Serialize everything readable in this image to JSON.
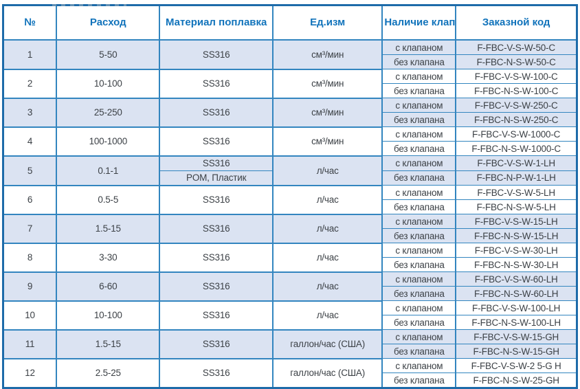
{
  "theme": {
    "header_text_color": "#1173bb",
    "grid_color": "#3285bf",
    "outer_border_color": "#1d6ba9",
    "shaded_row_color": "#dbe3f2",
    "body_text_color": "#3c4146"
  },
  "table": {
    "headers": {
      "num": "№",
      "flow": "Расход",
      "material": "Материал поплавка",
      "unit": "Ед.изм",
      "valve": "Наличие клапана",
      "code": "Заказной код"
    },
    "rows": [
      {
        "num": "1",
        "flow": "5-50",
        "materials": [
          "SS316"
        ],
        "unit": "см³/мин",
        "options": [
          {
            "valve": "с клапаном",
            "code": "F-FBC-V-S-W-50-C"
          },
          {
            "valve": "без клапана",
            "code": "F-FBC-N-S-W-50-C"
          }
        ]
      },
      {
        "num": "2",
        "flow": "10-100",
        "materials": [
          "SS316"
        ],
        "unit": "см³/мин",
        "options": [
          {
            "valve": "с клапаном",
            "code": "F-FBC-V-S-W-100-C"
          },
          {
            "valve": "без клапана",
            "code": "F-FBC-N-S-W-100-C"
          }
        ]
      },
      {
        "num": "3",
        "flow": "25-250",
        "materials": [
          "SS316"
        ],
        "unit": "см³/мин",
        "options": [
          {
            "valve": "с клапаном",
            "code": "F-FBC-V-S-W-250-C"
          },
          {
            "valve": "без клапана",
            "code": "F-FBC-N-S-W-250-C"
          }
        ]
      },
      {
        "num": "4",
        "flow": "100-1000",
        "materials": [
          "SS316"
        ],
        "unit": "см³/мин",
        "options": [
          {
            "valve": "с клапаном",
            "code": "F-FBC-V-S-W-1000-C"
          },
          {
            "valve": "без клапана",
            "code": "F-FBC-N-S-W-1000-C"
          }
        ]
      },
      {
        "num": "5",
        "flow": "0.1-1",
        "materials": [
          "SS316",
          "POM, Пластик"
        ],
        "unit": "л/час",
        "options": [
          {
            "valve": "с клапаном",
            "code": "F-FBC-V-S-W-1-LH"
          },
          {
            "valve": "без клапана",
            "code": "F-FBC-N-P-W-1-LH"
          }
        ]
      },
      {
        "num": "6",
        "flow": "0.5-5",
        "materials": [
          "SS316"
        ],
        "unit": "л/час",
        "options": [
          {
            "valve": "с клапаном",
            "code": "F-FBC-V-S-W-5-LH"
          },
          {
            "valve": "без клапана",
            "code": "F-FBC-N-S-W-5-LH"
          }
        ]
      },
      {
        "num": "7",
        "flow": "1.5-15",
        "materials": [
          "SS316"
        ],
        "unit": "л/час",
        "options": [
          {
            "valve": "с клапаном",
            "code": "F-FBC-V-S-W-15-LH"
          },
          {
            "valve": "без клапана",
            "code": "F-FBC-N-S-W-15-LH"
          }
        ]
      },
      {
        "num": "8",
        "flow": "3-30",
        "materials": [
          "SS316"
        ],
        "unit": "л/час",
        "options": [
          {
            "valve": "с клапаном",
            "code": "F-FBC-V-S-W-30-LH"
          },
          {
            "valve": "без клапана",
            "code": "F-FBC-N-S-W-30-LH"
          }
        ]
      },
      {
        "num": "9",
        "flow": "6-60",
        "materials": [
          "SS316"
        ],
        "unit": "л/час",
        "options": [
          {
            "valve": "с клапаном",
            "code": "F-FBC-V-S-W-60-LH"
          },
          {
            "valve": "без клапана",
            "code": "F-FBC-N-S-W-60-LH"
          }
        ]
      },
      {
        "num": "10",
        "flow": "10-100",
        "materials": [
          "SS316"
        ],
        "unit": "л/час",
        "options": [
          {
            "valve": "с клапаном",
            "code": "F-FBC-V-S-W-100-LH"
          },
          {
            "valve": "без клапана",
            "code": "F-FBC-N-S-W-100-LH"
          }
        ]
      },
      {
        "num": "11",
        "flow": "1.5-15",
        "materials": [
          "SS316"
        ],
        "unit": "галлон/час (США)",
        "options": [
          {
            "valve": "с клапаном",
            "code": "F-FBC-V-S-W-15-GH"
          },
          {
            "valve": "без клапана",
            "code": "F-FBC-N-S-W-15-GH"
          }
        ]
      },
      {
        "num": "12",
        "flow": "2.5-25",
        "materials": [
          "SS316"
        ],
        "unit": "галлон/час (США)",
        "options": [
          {
            "valve": "с клапаном",
            "code": "F-FBC-V-S-W-2 5-G H"
          },
          {
            "valve": "без клапана",
            "code": "F-FBC-N-S-W-25-GH"
          }
        ]
      }
    ]
  }
}
